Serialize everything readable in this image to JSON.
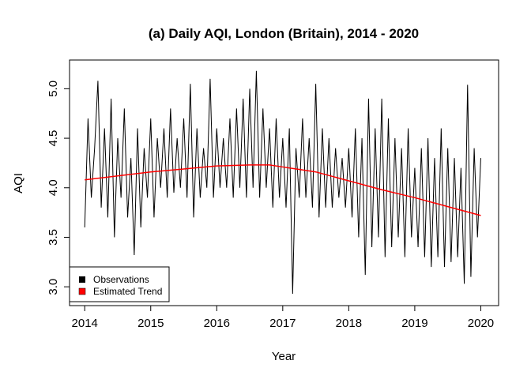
{
  "chart_data": {
    "type": "line",
    "title": "(a) Daily AQI, London (Britain), 2014 - 2020",
    "xlabel": "Year",
    "ylabel": "AQI",
    "xlim": [
      2013.77,
      2020.27
    ],
    "ylim": [
      2.81,
      5.29
    ],
    "xticks": [
      2014,
      2015,
      2016,
      2017,
      2018,
      2019,
      2020
    ],
    "yticks": [
      "3.0",
      "3.5",
      "4.0",
      "4.5",
      "5.0"
    ],
    "grid": false,
    "legend": {
      "placement": "bottom-left",
      "entries": [
        {
          "label": "Observations",
          "color": "#000000"
        },
        {
          "label": "Estimated Trend",
          "color": "#ff0000"
        }
      ]
    },
    "series": [
      {
        "name": "Observations",
        "color": "#000000",
        "x_start": 2014.0,
        "x_step": 0.05,
        "values": [
          3.6,
          4.7,
          3.9,
          4.4,
          5.08,
          3.8,
          4.6,
          3.7,
          4.9,
          3.5,
          4.5,
          3.9,
          4.8,
          3.7,
          4.3,
          3.32,
          4.6,
          3.6,
          4.4,
          3.9,
          4.7,
          3.7,
          4.5,
          4.0,
          4.6,
          3.9,
          4.8,
          3.95,
          4.5,
          4.0,
          4.7,
          3.9,
          5.05,
          3.7,
          4.6,
          3.9,
          4.4,
          4.0,
          5.1,
          3.9,
          4.6,
          4.0,
          4.5,
          4.0,
          4.7,
          3.9,
          4.8,
          4.0,
          4.9,
          3.9,
          5.0,
          4.0,
          5.18,
          3.9,
          4.8,
          4.0,
          4.6,
          3.8,
          4.7,
          3.9,
          4.5,
          3.8,
          4.6,
          2.93,
          4.4,
          3.9,
          4.7,
          3.9,
          4.5,
          3.8,
          5.05,
          3.7,
          4.6,
          3.8,
          4.5,
          3.8,
          4.4,
          3.9,
          4.3,
          3.8,
          4.4,
          3.7,
          4.6,
          3.5,
          4.5,
          3.12,
          4.9,
          3.4,
          4.6,
          3.5,
          4.9,
          3.3,
          4.7,
          3.4,
          4.5,
          3.5,
          4.4,
          3.3,
          4.6,
          3.5,
          4.2,
          3.4,
          4.4,
          3.3,
          4.5,
          3.2,
          4.3,
          3.3,
          4.6,
          3.2,
          4.4,
          3.25,
          4.3,
          3.3,
          4.2,
          3.03,
          5.04,
          3.1,
          4.4,
          3.5,
          4.3
        ]
      },
      {
        "name": "Estimated Trend",
        "color": "#ff0000",
        "x": [
          2014,
          2014.5,
          2015,
          2015.5,
          2016,
          2016.5,
          2016.8,
          2017,
          2017.5,
          2018,
          2018.5,
          2019,
          2019.5,
          2020
        ],
        "values": [
          4.08,
          4.12,
          4.16,
          4.19,
          4.22,
          4.23,
          4.23,
          4.21,
          4.16,
          4.07,
          3.98,
          3.9,
          3.81,
          3.72
        ]
      }
    ]
  }
}
